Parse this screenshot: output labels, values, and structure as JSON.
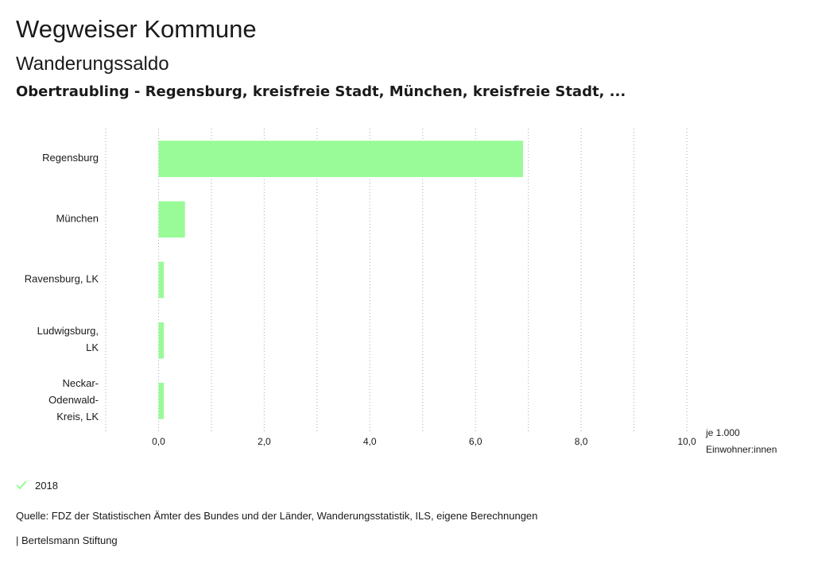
{
  "header": {
    "title": "Wegweiser Kommune",
    "subtitle": "Wanderungssaldo",
    "region": "Obertraubling - Regensburg, kreisfreie Stadt, München, kreisfreie Stadt, ..."
  },
  "chart_data": {
    "type": "bar",
    "orientation": "horizontal",
    "categories": [
      [
        "Regensburg"
      ],
      [
        "München"
      ],
      [
        "Ravensburg, LK"
      ],
      [
        "Ludwigsburg,",
        "LK"
      ],
      [
        "Neckar-",
        "Odenwald-",
        "Kreis, LK"
      ]
    ],
    "series": [
      {
        "name": "2018",
        "values": [
          6.9,
          0.5,
          0.1,
          0.1,
          0.1
        ],
        "color": "#98fb98"
      }
    ],
    "xlim": [
      -1.0,
      10.0
    ],
    "xticks": [
      0,
      2,
      4,
      6,
      8,
      10
    ],
    "xtick_labels": [
      "0,0",
      "2,0",
      "4,0",
      "6,0",
      "8,0",
      "10,0"
    ],
    "unit_label": [
      "je 1.000",
      "Einwohner:innen"
    ],
    "grid": "vertical dotted"
  },
  "legend": {
    "label": "2018",
    "color": "#98fb98"
  },
  "source": "Quelle: FDZ der Statistischen Ämter des Bundes und der Länder, Wanderungsstatistik, ILS, eigene Berechnungen",
  "footer": "| Bertelsmann Stiftung"
}
